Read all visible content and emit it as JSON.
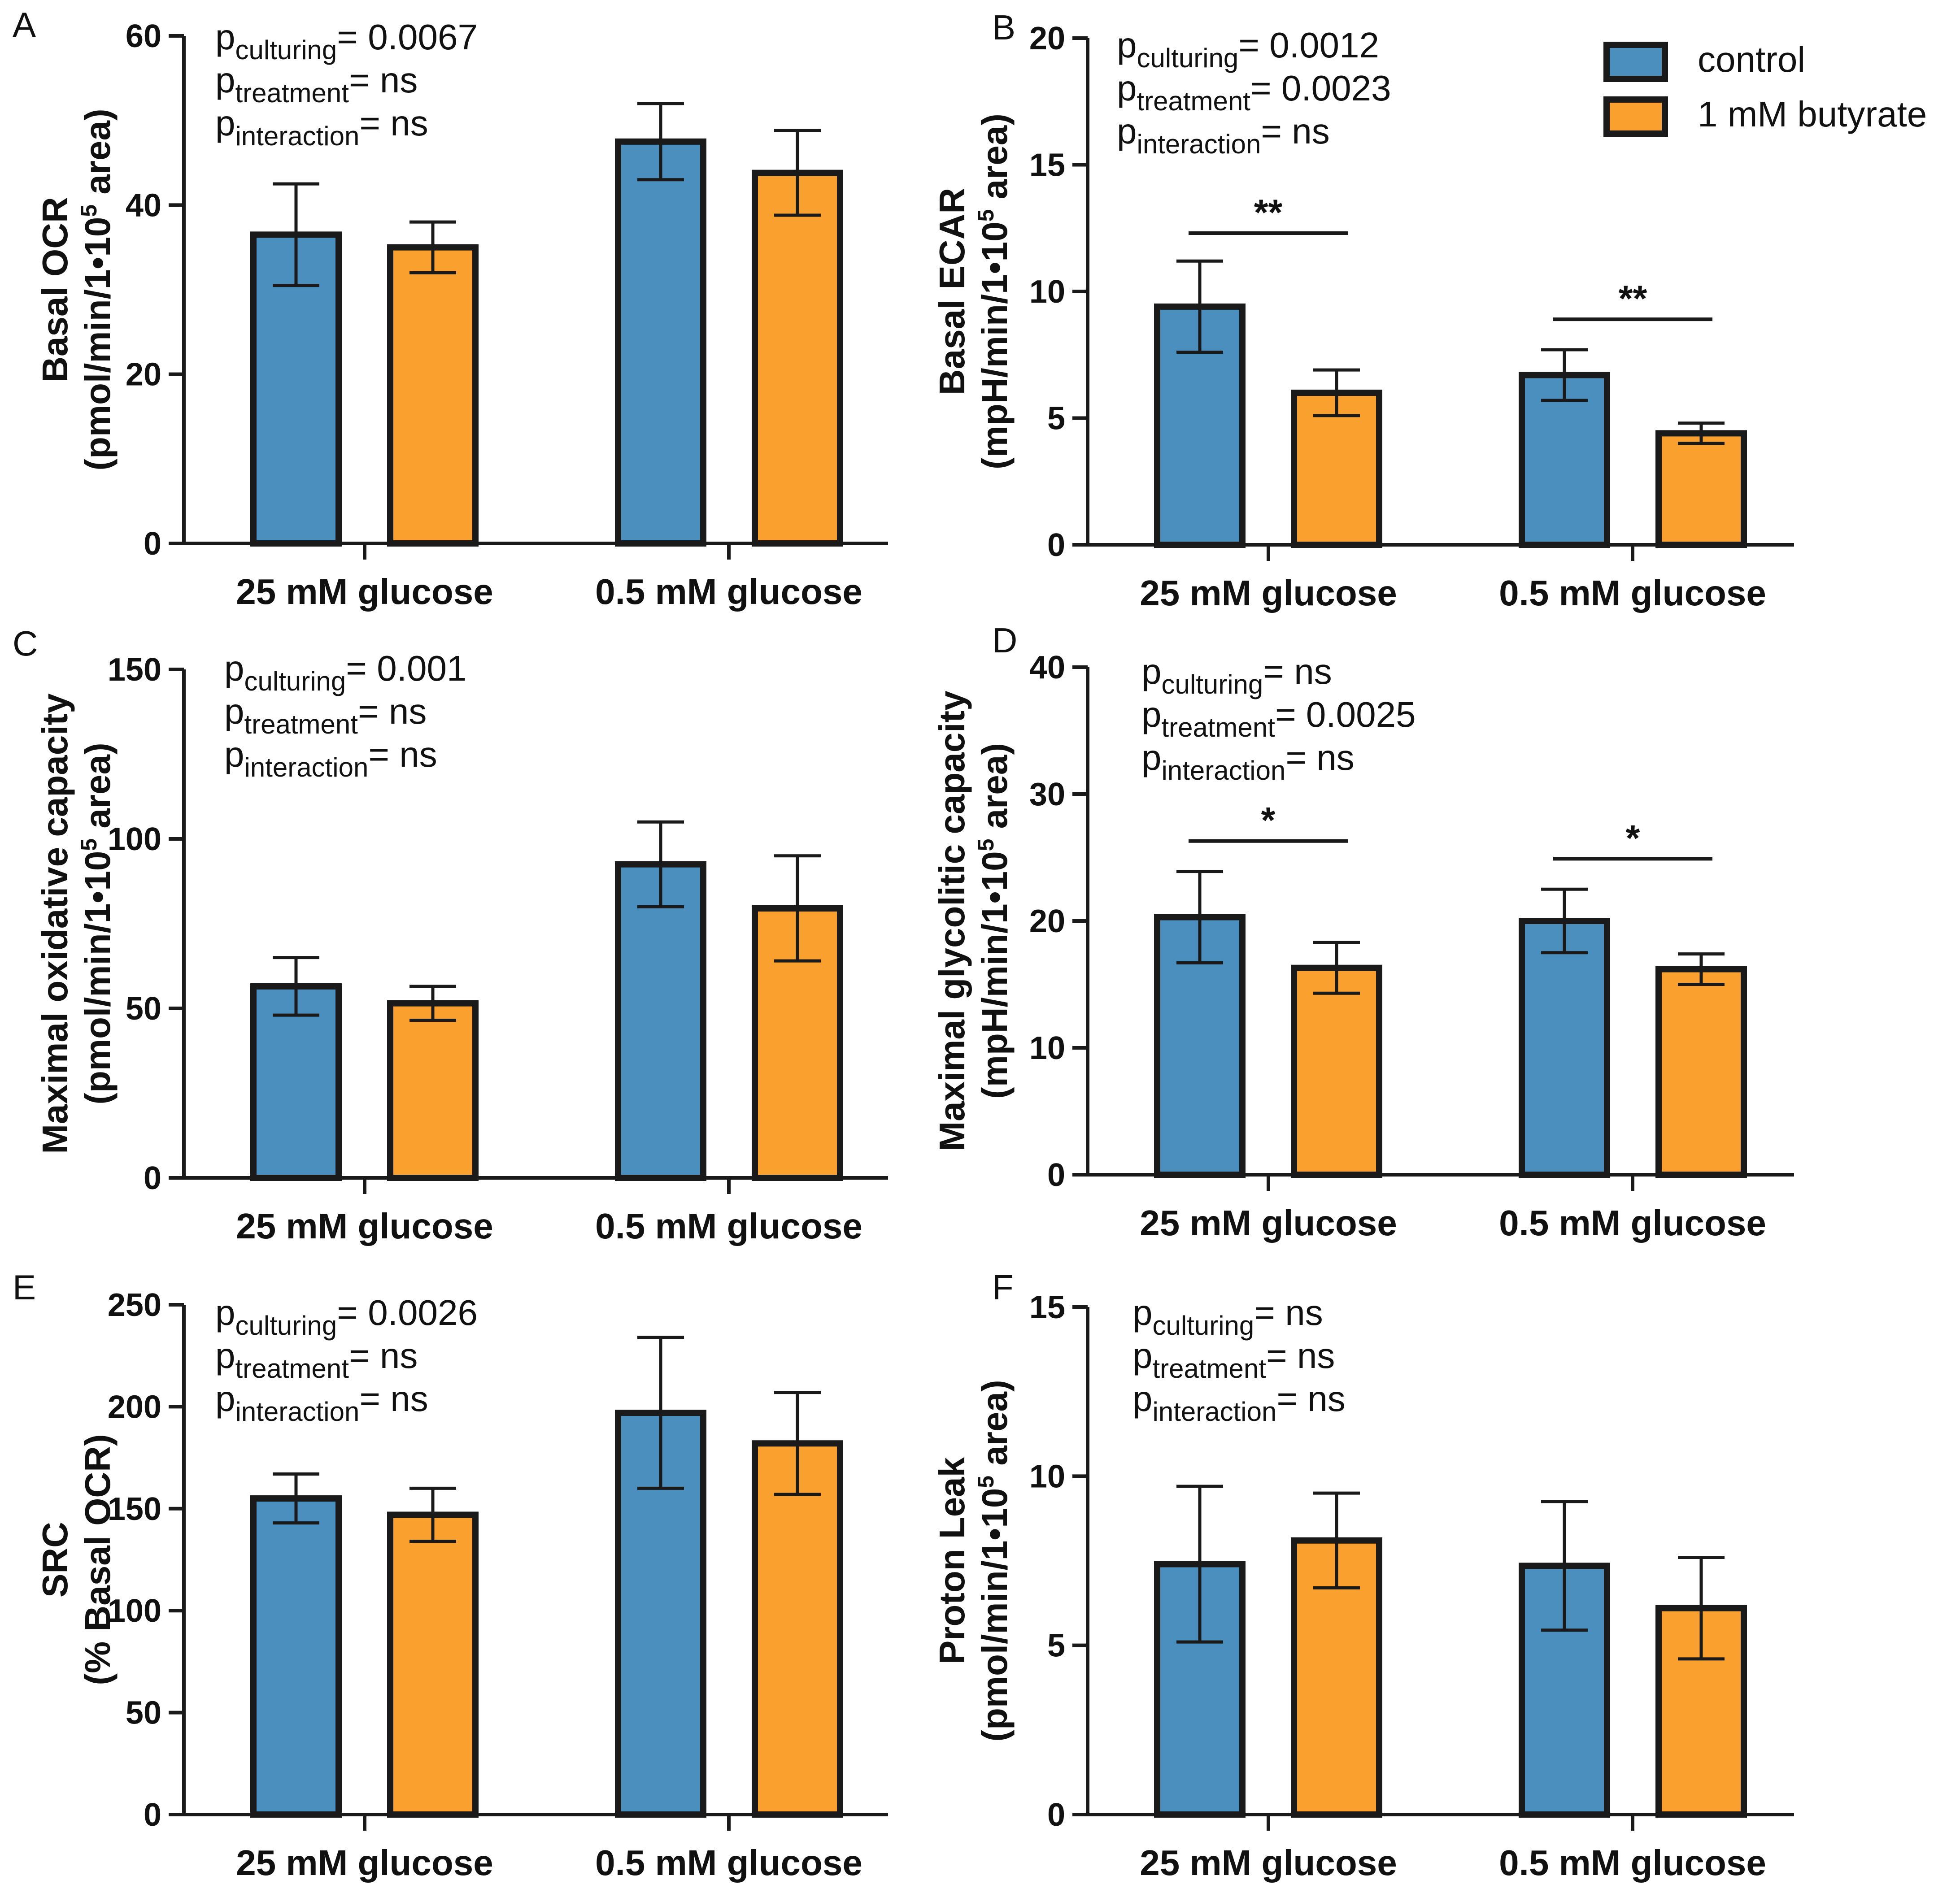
{
  "colors": {
    "control": "#4a8fbd",
    "butyrate": "#f9a02e",
    "stroke": "#1a1a1a"
  },
  "legend": [
    {
      "key": "control",
      "label": "control"
    },
    {
      "key": "butyrate",
      "label": "1 mM butyrate"
    }
  ],
  "chart_data": [
    {
      "panel": "A",
      "type": "bar",
      "categories": [
        "25 mM glucose",
        "0.5 mM glucose"
      ],
      "ylabel": [
        "Basal OCR",
        "(pmol/min/1•10",
        "5",
        " area)"
      ],
      "ylim": [
        0,
        60
      ],
      "yticks": [
        0,
        20,
        40,
        60
      ],
      "series": [
        {
          "name": "control",
          "values": [
            36.5,
            47.5
          ],
          "errors": [
            6,
            4.5
          ]
        },
        {
          "name": "1 mM butyrate",
          "values": [
            35,
            43.8
          ],
          "errors": [
            3,
            5
          ]
        }
      ],
      "stats": [
        {
          "base": "p",
          "sub": "culturing",
          "value": "=  0.0067"
        },
        {
          "base": "p",
          "sub": "treatment",
          "value": "=  ns"
        },
        {
          "base": "p",
          "sub": "interaction",
          "value": "= ns"
        }
      ],
      "significance": []
    },
    {
      "panel": "B",
      "type": "bar",
      "categories": [
        "25 mM glucose",
        "0.5 mM glucose"
      ],
      "ylabel": [
        "Basal ECAR",
        "(mpH/min/1•10",
        "5",
        " area)"
      ],
      "ylim": [
        0,
        20
      ],
      "yticks": [
        0,
        5,
        10,
        15,
        20
      ],
      "series": [
        {
          "name": "control",
          "values": [
            9.4,
            6.7
          ],
          "errors": [
            1.8,
            1.0
          ]
        },
        {
          "name": "1 mM butyrate",
          "values": [
            6.0,
            4.4
          ],
          "errors": [
            0.9,
            0.4
          ]
        }
      ],
      "stats": [
        {
          "base": "p",
          "sub": "culturing",
          "value": "=  0.0012"
        },
        {
          "base": "p",
          "sub": "treatment",
          "value": "= 0.0023"
        },
        {
          "base": "p",
          "sub": "interaction",
          "value": "= ns"
        }
      ],
      "significance": [
        {
          "group": 0,
          "label": "**",
          "y": 12.3
        },
        {
          "group": 1,
          "label": "**",
          "y": 8.9
        }
      ]
    },
    {
      "panel": "C",
      "type": "bar",
      "categories": [
        "25 mM glucose",
        "0.5 mM glucose"
      ],
      "ylabel": [
        "Maximal oxidative capacity",
        "(pmol/min/1•10",
        "5",
        " area)"
      ],
      "ylim": [
        0,
        150
      ],
      "yticks": [
        0,
        50,
        100,
        150
      ],
      "series": [
        {
          "name": "control",
          "values": [
            56.5,
            92.5
          ],
          "errors": [
            8.5,
            12.5
          ]
        },
        {
          "name": "1 mM butyrate",
          "values": [
            51.5,
            79.5
          ],
          "errors": [
            5,
            15.5
          ]
        }
      ],
      "stats": [
        {
          "base": "p",
          "sub": "culturing",
          "value": "=  0.001"
        },
        {
          "base": "p",
          "sub": "treatment",
          "value": "=  ns"
        },
        {
          "base": "p",
          "sub": "interaction",
          "value": "= ns"
        }
      ],
      "significance": []
    },
    {
      "panel": "D",
      "type": "bar",
      "categories": [
        "25 mM glucose",
        "0.5 mM glucose"
      ],
      "ylabel": [
        "Maximal glycolitic capacity",
        "(mpH/min/1•10",
        "5",
        " area)"
      ],
      "ylim": [
        0,
        40
      ],
      "yticks": [
        0,
        10,
        20,
        30,
        40
      ],
      "series": [
        {
          "name": "control",
          "values": [
            20.3,
            20.0
          ],
          "errors": [
            3.6,
            2.5
          ]
        },
        {
          "name": "1 mM butyrate",
          "values": [
            16.3,
            16.2
          ],
          "errors": [
            2.0,
            1.2
          ]
        }
      ],
      "stats": [
        {
          "base": "p",
          "sub": "culturing",
          "value": "=  ns"
        },
        {
          "base": "p",
          "sub": "treatment",
          "value": "= 0.0025"
        },
        {
          "base": "p",
          "sub": "interaction",
          "value": "= ns"
        }
      ],
      "significance": [
        {
          "group": 0,
          "label": "*",
          "y": 26.3
        },
        {
          "group": 1,
          "label": "*",
          "y": 24.9
        }
      ]
    },
    {
      "panel": "E",
      "type": "bar",
      "categories": [
        "25 mM glucose",
        "0.5 mM glucose"
      ],
      "ylabel": [
        "SRC",
        "(% Basal OCR)",
        "",
        ""
      ],
      "ylim": [
        0,
        250
      ],
      "yticks": [
        0,
        50,
        100,
        150,
        200,
        250
      ],
      "series": [
        {
          "name": "control",
          "values": [
            155,
            197
          ],
          "errors": [
            12,
            37
          ]
        },
        {
          "name": "1 mM butyrate",
          "values": [
            147,
            182
          ],
          "errors": [
            13,
            25
          ]
        }
      ],
      "stats": [
        {
          "base": "p",
          "sub": "culturing",
          "value": "=  0.0026"
        },
        {
          "base": "p",
          "sub": "treatment",
          "value": "= ns"
        },
        {
          "base": "p",
          "sub": "interaction",
          "value": "= ns"
        }
      ],
      "significance": []
    },
    {
      "panel": "F",
      "type": "bar",
      "categories": [
        "25 mM glucose",
        "0.5 mM glucose"
      ],
      "ylabel": [
        "Proton Leak",
        "(pmol/min/1•10",
        "5",
        " area)"
      ],
      "ylim": [
        0,
        15
      ],
      "yticks": [
        0,
        5,
        10,
        15
      ],
      "series": [
        {
          "name": "control",
          "values": [
            7.4,
            7.35
          ],
          "errors": [
            2.3,
            1.9
          ]
        },
        {
          "name": "1 mM butyrate",
          "values": [
            8.1,
            6.1
          ],
          "errors": [
            1.4,
            1.5
          ]
        }
      ],
      "stats": [
        {
          "base": "p",
          "sub": "culturing",
          "value": "= ns"
        },
        {
          "base": "p",
          "sub": "treatment",
          "value": "=  ns"
        },
        {
          "base": "p",
          "sub": "interaction",
          "value": "= ns"
        }
      ],
      "significance": []
    }
  ]
}
